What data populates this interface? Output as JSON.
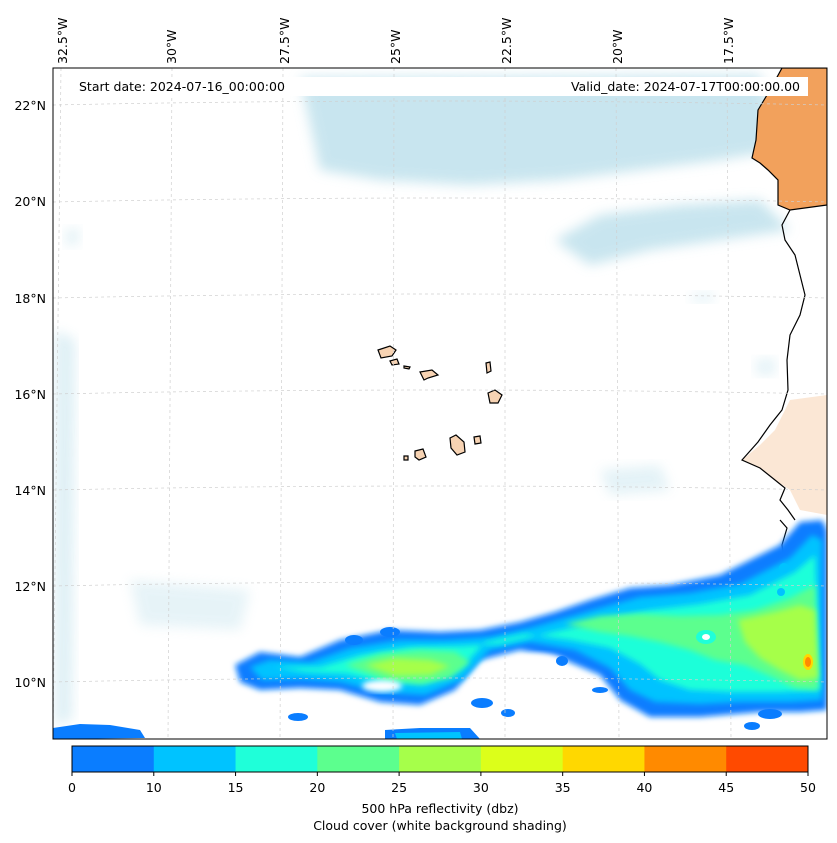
{
  "header": {
    "start_date": "Start date: 2024-07-16_00:00:00",
    "valid_date": "Valid_date: 2024-07-17T00:00:00.00"
  },
  "lon_labels": [
    "32.5°W",
    "30°W",
    "27.5°W",
    "25°W",
    "22.5°W",
    "20°W",
    "17.5°W"
  ],
  "lat_labels": [
    "22°N",
    "20°N",
    "18°N",
    "16°N",
    "14°N",
    "12°N",
    "10°N"
  ],
  "colorbar": {
    "ticks": [
      "0",
      "10",
      "15",
      "20",
      "25",
      "30",
      "35",
      "40",
      "45",
      "50"
    ],
    "colors": [
      "#0a7dff",
      "#00c3ff",
      "#1fffd9",
      "#5cff8e",
      "#a6ff4a",
      "#dcff1a",
      "#ffd800",
      "#ff8a00",
      "#ff4a00"
    ],
    "label_line1": "500 hPa reflectivity (dbz)",
    "label_line2": "Cloud cover (white background shading)"
  },
  "colors": {
    "land": "#f2a15c",
    "land_light": "#f7d3b3",
    "cloud": "#bfe1ec",
    "coast": "#000000"
  }
}
